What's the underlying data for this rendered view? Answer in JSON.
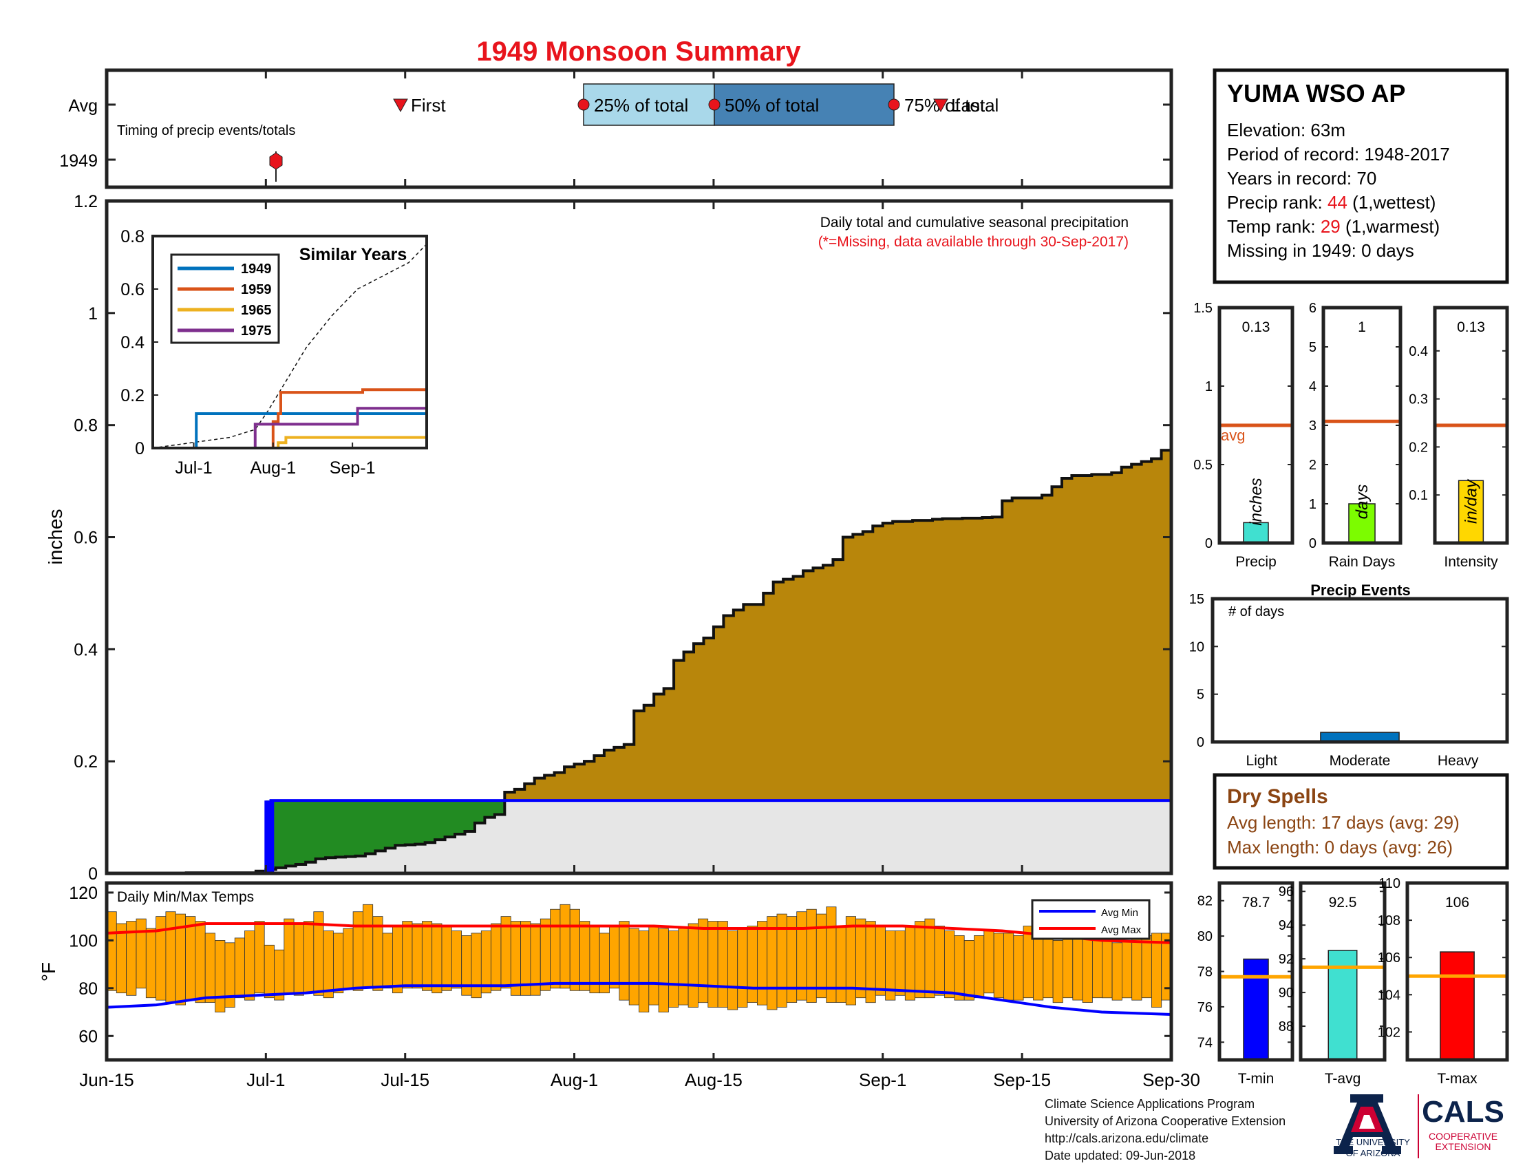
{
  "title": "1949 Monsoon Summary",
  "station": {
    "name": "YUMA WSO AP",
    "elevation_label": "Elevation: 63m",
    "period_label": "Period of record: 1948-2017",
    "years_label": "Years in record: 70",
    "precip_rank_prefix": "Precip rank: ",
    "precip_rank_value": "44",
    "precip_rank_suffix": " (1,wettest)",
    "temp_rank_prefix": "Temp rank: ",
    "temp_rank_value": "29",
    "temp_rank_suffix": " (1,warmest)",
    "missing_label": "Missing in 1949: 0 days"
  },
  "colors": {
    "title": "#e8141c",
    "seasonal_fill": "#b8860b",
    "year_fill": "#228b22",
    "ref_fill": "#e6e6e6",
    "ref_line": "#0000ff",
    "temp_bar": "#ffa500",
    "avg_min": "#0000ff",
    "avg_max": "#ff0000",
    "avg_line": "#d95319",
    "event_bar": "#0072bd",
    "dry_spell": "#8b4513",
    "ua_red": "#cc0033",
    "ua_blue": "#0c234b"
  },
  "timing": {
    "row_labels": [
      "Avg",
      "1949"
    ],
    "annotation": "Timing of precip events/totals",
    "first_label": "First",
    "p25_label": "25% of total",
    "p50_label": "50% of total",
    "p75_label": "75% of total",
    "last_label": "Last"
  },
  "chart_data": [
    {
      "id": "cumulative",
      "type": "area",
      "title": "Daily total and cumulative seasonal precipitation",
      "subtitle": "(*=Missing, data available through 30-Sep-2017)",
      "ylabel": "inches",
      "ylim": [
        0,
        1.2
      ],
      "yticks": [
        0,
        0.2,
        0.4,
        0.6,
        0.8,
        1,
        1.2
      ],
      "x_tick_labels": [
        "Jun-15",
        "Jul-1",
        "Jul-15",
        "Aug-1",
        "Aug-15",
        "Sep-1",
        "Sep-15",
        "Sep-30"
      ],
      "x_tick_days": [
        0,
        16,
        30,
        47,
        61,
        78,
        92,
        107
      ],
      "avg_cumulative": {
        "days": [
          0,
          8,
          15,
          16,
          17,
          18,
          19,
          20,
          21,
          22,
          23,
          24,
          25,
          26,
          27,
          28,
          29,
          30,
          31,
          32,
          33,
          34,
          35,
          36,
          37,
          38,
          39,
          40,
          41,
          42,
          43,
          44,
          45,
          46,
          47,
          48,
          49,
          50,
          51,
          52,
          53,
          54,
          55,
          56,
          57,
          58,
          59,
          60,
          61,
          62,
          63,
          64,
          65,
          66,
          67,
          68,
          69,
          70,
          71,
          72,
          73,
          74,
          75,
          76,
          77,
          78,
          79,
          80,
          81,
          82,
          83,
          84,
          85,
          86,
          87,
          88,
          89,
          90,
          91,
          92,
          93,
          94,
          95,
          96,
          97,
          98,
          99,
          100,
          101,
          102,
          103,
          104,
          105,
          106,
          107
        ],
        "values": [
          0,
          0.001,
          0.004,
          0.007,
          0.01,
          0.013,
          0.016,
          0.02,
          0.026,
          0.028,
          0.029,
          0.03,
          0.031,
          0.035,
          0.04,
          0.045,
          0.05,
          0.051,
          0.052,
          0.055,
          0.06,
          0.065,
          0.07,
          0.075,
          0.09,
          0.1,
          0.105,
          0.145,
          0.15,
          0.16,
          0.17,
          0.175,
          0.18,
          0.19,
          0.195,
          0.2,
          0.21,
          0.22,
          0.225,
          0.23,
          0.29,
          0.3,
          0.32,
          0.33,
          0.38,
          0.395,
          0.41,
          0.42,
          0.44,
          0.46,
          0.47,
          0.48,
          0.48,
          0.5,
          0.52,
          0.525,
          0.53,
          0.54,
          0.545,
          0.55,
          0.56,
          0.6,
          0.605,
          0.61,
          0.62,
          0.625,
          0.628,
          0.628,
          0.63,
          0.63,
          0.632,
          0.633,
          0.633,
          0.634,
          0.634,
          0.635,
          0.636,
          0.665,
          0.67,
          0.67,
          0.67,
          0.675,
          0.69,
          0.705,
          0.71,
          0.71,
          0.712,
          0.712,
          0.715,
          0.725,
          0.73,
          0.735,
          0.74,
          0.755,
          0.75
        ]
      },
      "year_cumulative": {
        "name": "1949",
        "days": [
          0,
          16,
          16.5,
          107
        ],
        "values": [
          0,
          0,
          0.13,
          0.13
        ]
      }
    },
    {
      "id": "similar_years",
      "type": "line",
      "title": "Similar Years",
      "ylim": [
        0,
        0.8
      ],
      "yticks": [
        0,
        0.2,
        0.4,
        0.6,
        0.8
      ],
      "x_tick_labels": [
        "Jul-1",
        "Aug-1",
        "Sep-1"
      ],
      "x_tick_days": [
        16,
        47,
        78
      ],
      "series": [
        {
          "name": "1949",
          "color": "#0072bd",
          "days": [
            0,
            16,
            17,
            107
          ],
          "values": [
            0,
            0,
            0.13,
            0.13
          ]
        },
        {
          "name": "1959",
          "color": "#d95319",
          "days": [
            0,
            46,
            47,
            49,
            50,
            81,
            82,
            106,
            107
          ],
          "values": [
            0,
            0,
            0.1,
            0.13,
            0.21,
            0.21,
            0.22,
            0.22,
            0.22
          ]
        },
        {
          "name": "1965",
          "color": "#edb120",
          "days": [
            0,
            48,
            49,
            51,
            52,
            106,
            107
          ],
          "values": [
            0,
            0,
            0.02,
            0.02,
            0.04,
            0.04,
            0.04
          ]
        },
        {
          "name": "1975",
          "color": "#7e2f8e",
          "days": [
            0,
            39,
            40,
            79,
            80,
            106,
            107
          ],
          "values": [
            0,
            0,
            0.09,
            0.09,
            0.15,
            0.15,
            0.22
          ]
        }
      ],
      "avg_line": {
        "days": [
          0,
          30,
          40,
          45,
          55,
          60,
          70,
          80,
          90,
          100,
          107
        ],
        "values": [
          0,
          0.04,
          0.07,
          0.14,
          0.3,
          0.38,
          0.5,
          0.6,
          0.65,
          0.7,
          0.77
        ]
      }
    },
    {
      "id": "precip_total",
      "type": "bar",
      "xlabel": "Precip",
      "unit_label": "inches",
      "value_label": "0.13",
      "value": 0.13,
      "avg": 0.75,
      "avg_label": "avg",
      "ylim": [
        0,
        1.5
      ],
      "yticks": [
        0,
        0.5,
        1,
        1.5
      ],
      "color": "#40e0d0"
    },
    {
      "id": "rain_days",
      "type": "bar",
      "xlabel": "Rain Days",
      "unit_label": "days",
      "value_label": "1",
      "value": 1,
      "avg": 3.1,
      "ylim": [
        0,
        6
      ],
      "yticks": [
        0,
        1,
        2,
        3,
        4,
        5,
        6
      ],
      "color": "#7cfc00"
    },
    {
      "id": "intensity",
      "type": "bar",
      "xlabel": "Intensity",
      "unit_label": "in/day",
      "value_label": "0.13",
      "value": 0.13,
      "avg": 0.245,
      "ylim": [
        0,
        0.49
      ],
      "yticks": [
        0.1,
        0.2,
        0.3,
        0.4
      ],
      "color": "#ffd700"
    },
    {
      "id": "precip_events",
      "type": "bar",
      "title": "Precip Events",
      "inner_label": "# of days",
      "categories": [
        "Light",
        "Moderate",
        "Heavy"
      ],
      "values": [
        0,
        1,
        0
      ],
      "ylim": [
        0,
        15
      ],
      "yticks": [
        0,
        5,
        10,
        15
      ]
    },
    {
      "id": "daily_temps",
      "type": "bar",
      "title": "Daily Min/Max Temps",
      "ylabel": "°F",
      "ylim": [
        50,
        124
      ],
      "yticks": [
        60,
        80,
        100,
        120
      ],
      "legend": [
        "Avg Min",
        "Avg Max"
      ],
      "legend_position": "top-right",
      "daily_max": [
        112,
        107,
        108,
        109,
        105,
        110,
        112,
        111,
        110,
        108,
        103,
        100,
        99,
        101,
        104,
        108,
        98,
        96,
        109,
        107,
        108,
        112,
        104,
        103,
        105,
        112,
        115,
        110,
        103,
        106,
        108,
        107,
        108,
        107,
        106,
        104,
        102,
        103,
        104,
        107,
        110,
        108,
        108,
        107,
        109,
        113,
        115,
        113,
        108,
        106,
        103,
        106,
        108,
        105,
        104,
        106,
        105,
        104,
        105,
        107,
        109,
        108,
        108,
        104,
        105,
        106,
        108,
        110,
        111,
        110,
        112,
        113,
        111,
        114,
        106,
        110,
        109,
        108,
        106,
        104,
        104,
        106,
        108,
        109,
        106,
        104,
        102,
        100,
        102,
        104,
        103,
        103,
        102,
        106,
        107,
        104,
        100,
        101,
        103,
        102,
        101,
        100,
        99,
        100,
        101,
        102,
        103,
        103
      ],
      "daily_min": [
        79,
        78,
        77,
        80,
        76,
        75,
        74,
        73,
        75,
        74,
        74,
        70,
        72,
        76,
        75,
        78,
        76,
        75,
        78,
        77,
        78,
        77,
        76,
        78,
        80,
        79,
        80,
        79,
        80,
        78,
        80,
        80,
        79,
        78,
        79,
        80,
        77,
        76,
        78,
        79,
        80,
        77,
        77,
        77,
        79,
        80,
        80,
        79,
        79,
        78,
        78,
        80,
        75,
        73,
        70,
        73,
        70,
        72,
        73,
        72,
        74,
        72,
        72,
        71,
        72,
        74,
        73,
        71,
        72,
        74,
        75,
        74,
        76,
        74,
        74,
        73,
        76,
        74,
        77,
        75,
        77,
        75,
        76,
        76,
        77,
        76,
        75,
        75,
        76,
        78,
        76,
        75,
        75,
        76,
        75,
        76,
        74,
        76,
        75,
        74,
        76,
        76,
        75,
        76,
        75,
        76,
        72,
        75
      ],
      "avg_min": {
        "days": [
          0,
          5,
          10,
          15,
          20,
          25,
          30,
          35,
          40,
          45,
          50,
          55,
          60,
          65,
          70,
          75,
          80,
          85,
          90,
          95,
          100,
          107
        ],
        "values": [
          72,
          73,
          76,
          77,
          78,
          80,
          81,
          81,
          81,
          82,
          82,
          82,
          81,
          80,
          80,
          80,
          79,
          78,
          75,
          72,
          70,
          69
        ]
      },
      "avg_max": {
        "days": [
          0,
          5,
          10,
          15,
          20,
          25,
          30,
          35,
          40,
          45,
          50,
          55,
          60,
          65,
          70,
          75,
          80,
          85,
          90,
          95,
          100,
          107
        ],
        "values": [
          103,
          104,
          107,
          107,
          107,
          106,
          106,
          106,
          106,
          106,
          106,
          106,
          105,
          105,
          105,
          106,
          106,
          105,
          104,
          102,
          100,
          99
        ]
      },
      "x_tick_labels": [
        "Jun-15",
        "Jul-1",
        "Jul-15",
        "Aug-1",
        "Aug-15",
        "Sep-1",
        "Sep-15",
        "Sep-30"
      ],
      "x_tick_days": [
        0,
        16,
        30,
        47,
        61,
        78,
        92,
        107
      ]
    },
    {
      "id": "t_min",
      "type": "bar",
      "xlabel": "T-min",
      "value_label": "78.7",
      "value": 78.7,
      "avg": 77.7,
      "ylim": [
        73,
        83
      ],
      "yticks": [
        74,
        76,
        78,
        80,
        82
      ],
      "color": "#0000ff"
    },
    {
      "id": "t_avg",
      "type": "bar",
      "xlabel": "T-avg",
      "value_label": "92.5",
      "value": 92.5,
      "avg": 91.5,
      "ylim": [
        86,
        96.5
      ],
      "yticks": [
        88,
        90,
        92,
        94,
        96
      ],
      "color": "#40e0d0"
    },
    {
      "id": "t_max",
      "type": "bar",
      "xlabel": "T-max",
      "value_label": "106",
      "value": 106.3,
      "avg": 105,
      "ylim": [
        100.5,
        110
      ],
      "yticks": [
        102,
        104,
        106,
        108,
        110
      ],
      "color": "#ff0000"
    }
  ],
  "dry_spells": {
    "title": "Dry Spells",
    "avg_label": "Avg length: 17 days (avg: 29)",
    "max_label": "Max length: 0 days (avg: 26)"
  },
  "footer": {
    "line1": "Climate Science Applications Program",
    "line2": "University of Arizona Cooperative Extension",
    "line3": "http://cals.arizona.edu/climate",
    "line4": " Date updated: 09-Jun-2018"
  },
  "logos": {
    "ua_top": "THE UNIVERSITY",
    "ua_bottom": "OF ARIZONA",
    "cals": "CALS",
    "cals_top": "COOPERATIVE",
    "cals_bottom": "EXTENSION"
  }
}
